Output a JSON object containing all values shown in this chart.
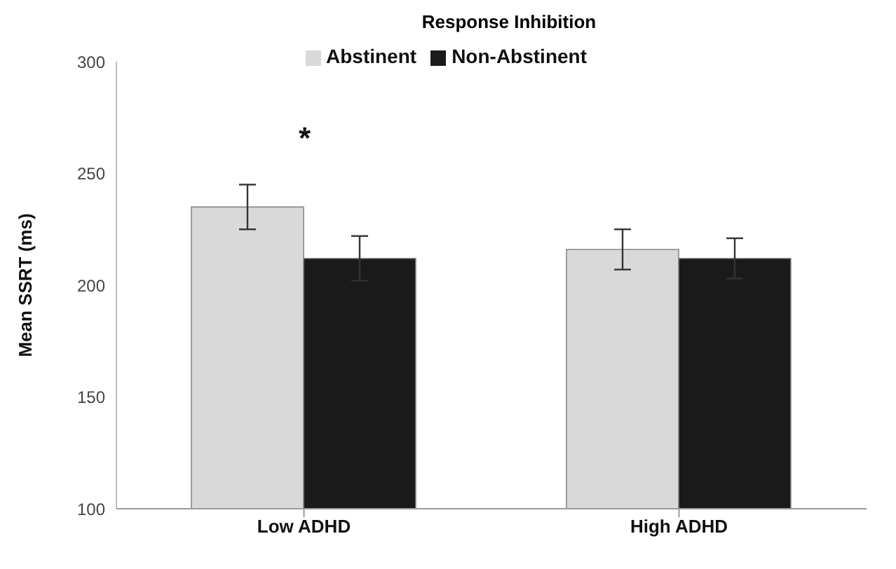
{
  "chart_data": {
    "type": "bar",
    "title": "Response Inhibition",
    "ylabel": "Mean SSRT (ms)",
    "categories": [
      "Low ADHD",
      "High ADHD"
    ],
    "series": [
      {
        "name": "Abstinent",
        "color": "#d9d9d9",
        "values": [
          235,
          216
        ],
        "errors": [
          10,
          9
        ]
      },
      {
        "name": "Non-Abstinent",
        "color": "#1a1a1a",
        "values": [
          212,
          212
        ],
        "errors": [
          10,
          9
        ]
      }
    ],
    "ylim": [
      100,
      300
    ],
    "yticks": [
      100,
      150,
      200,
      250,
      300
    ],
    "grid": false,
    "legend": "top",
    "annotations": [
      "*"
    ]
  }
}
